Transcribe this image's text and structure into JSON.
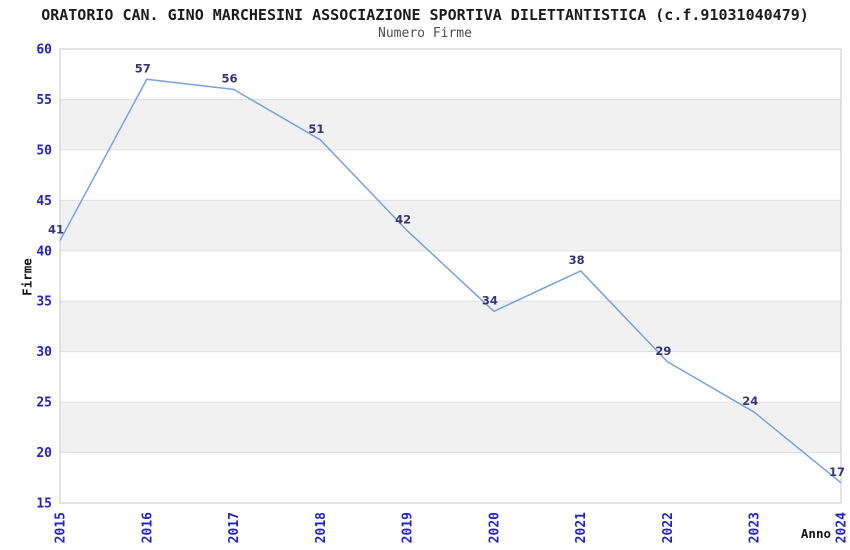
{
  "chart_data": {
    "type": "line",
    "title": "ORATORIO CAN. GINO MARCHESINI ASSOCIAZIONE SPORTIVA DILETTANTISTICA (c.f.91031040479)",
    "subtitle": "Numero Firme",
    "xlabel": "Anno",
    "ylabel": "Firme",
    "categories": [
      "2015",
      "2016",
      "2017",
      "2018",
      "2019",
      "2020",
      "2021",
      "2022",
      "2023",
      "2024"
    ],
    "values": [
      41,
      57,
      56,
      51,
      42,
      34,
      38,
      29,
      24,
      17
    ],
    "ylim": [
      15,
      60
    ],
    "yticks": [
      15,
      20,
      25,
      30,
      35,
      40,
      45,
      50,
      55,
      60
    ],
    "grid": "horizontal",
    "gray_bands": [
      [
        20,
        25
      ],
      [
        30,
        35
      ],
      [
        40,
        45
      ],
      [
        50,
        55
      ]
    ],
    "legend": "none",
    "point_labels": true,
    "line_color": "#74a3e3"
  },
  "styles": {
    "band_color": "#f1f1f1",
    "grid_color": "#e0e0e0",
    "border_color": "#c9c9c9",
    "tick_label_color": "#2222cc",
    "point_label_color": "#35357f",
    "title_color": "#1c1c1c",
    "subtitle_color": "#4f4f4f",
    "axis_title_color": "#141414",
    "background": "#ffffff"
  }
}
